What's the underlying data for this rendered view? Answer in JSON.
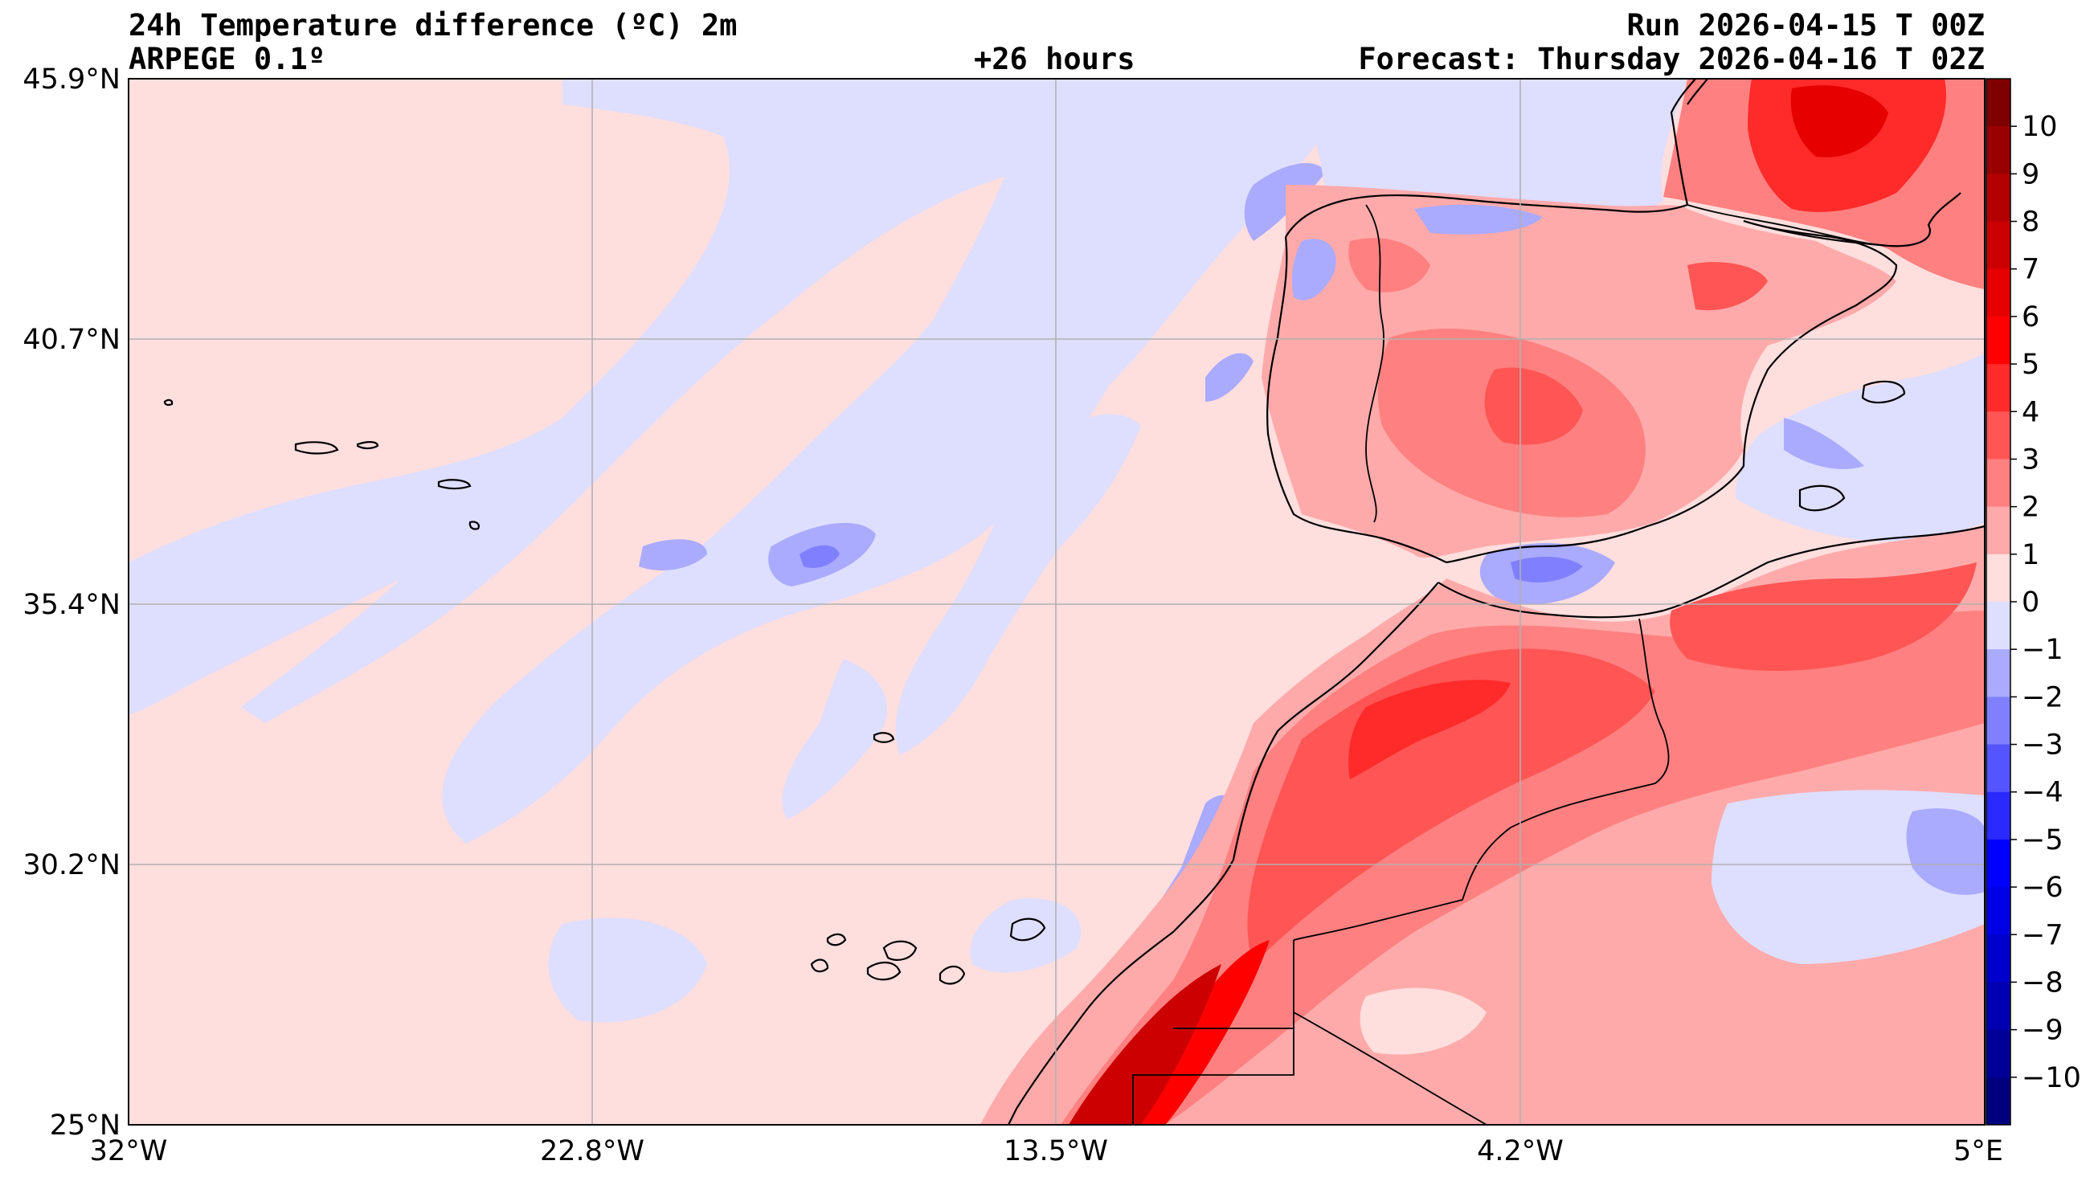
{
  "header": {
    "title": "24h Temperature difference (ºC) 2m",
    "model": "ARPEGE 0.1º",
    "lead_time": "+26 hours",
    "run": "Run 2026-04-15 T 00Z",
    "forecast": "Forecast: Thursday 2026-04-16 T 02Z"
  },
  "map": {
    "lat_ticks": [
      "45.9°N",
      "40.7°N",
      "35.4°N",
      "30.2°N",
      "25°N"
    ],
    "lon_ticks": [
      "32°W",
      "22.8°W",
      "13.5°W",
      "4.2°W",
      "5°E"
    ],
    "extent": {
      "lon_min": -32,
      "lon_max": 5,
      "lat_min": 25,
      "lat_max": 45.9
    }
  },
  "colorbar": {
    "ticks": [
      "10",
      "9",
      "8",
      "7",
      "6",
      "5",
      "4",
      "3",
      "2",
      "1",
      "0",
      "−1",
      "−2",
      "−3",
      "−4",
      "−5",
      "−6",
      "−7",
      "−8",
      "−9",
      "−10"
    ],
    "colors": [
      "#7f0000",
      "#990000",
      "#b30000",
      "#cc0000",
      "#e60000",
      "#ff0000",
      "#ff2a2a",
      "#ff5555",
      "#ff8080",
      "#ffaaaa",
      "#ffdede",
      "#dedeff",
      "#aaaaff",
      "#8080ff",
      "#5555ff",
      "#2a2aff",
      "#0000ff",
      "#0000e6",
      "#0000cc",
      "#0000b3",
      "#000099",
      "#00007f"
    ],
    "levels_min": -11,
    "levels_max": 11
  },
  "colors": {
    "ocean_positive": "#ffdede",
    "ocean_negative": "#dedeff",
    "grid": "#b0b0b0",
    "coast": "#000000"
  }
}
